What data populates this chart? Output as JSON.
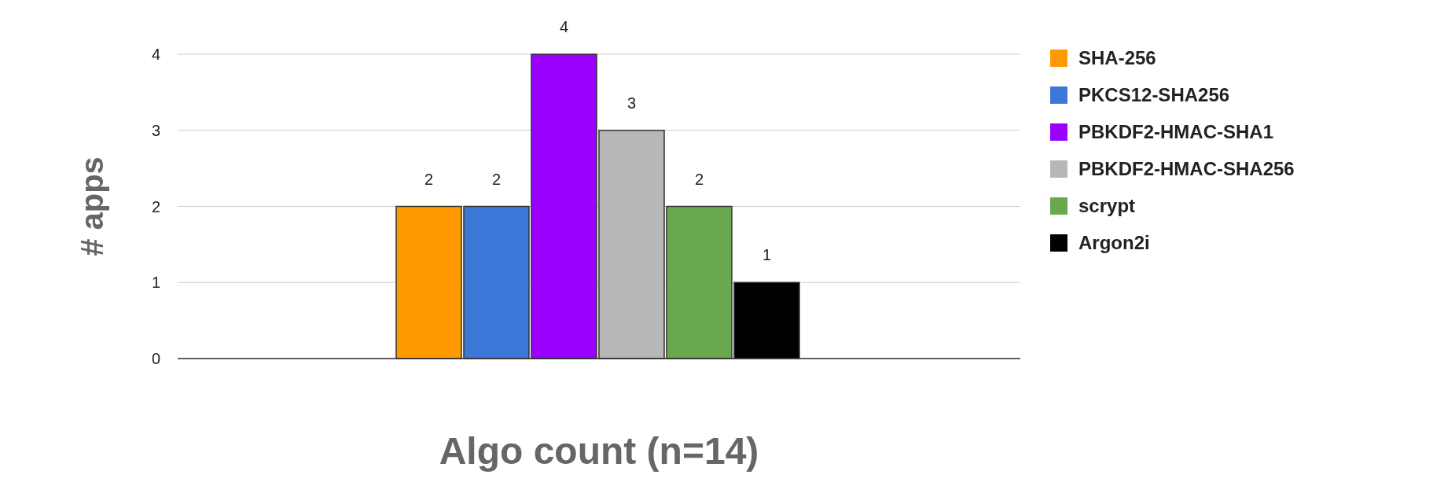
{
  "chart_data": {
    "type": "bar",
    "xlabel": "Algo count (n=14)",
    "ylabel": "# apps",
    "categories": [
      null
    ],
    "series": [
      {
        "name": "SHA-256",
        "color": "#ff9900",
        "values": [
          2
        ]
      },
      {
        "name": "PKCS12-SHA256",
        "color": "#3c78d8",
        "values": [
          2
        ]
      },
      {
        "name": "PBKDF2-HMAC-SHA1",
        "color": "#9900ff",
        "values": [
          4
        ]
      },
      {
        "name": "PBKDF2-HMAC-SHA256",
        "color": "#b7b7b7",
        "values": [
          3
        ]
      },
      {
        "name": "scrypt",
        "color": "#6aa84f",
        "values": [
          2
        ]
      },
      {
        "name": "Argon2i",
        "color": "#000000",
        "values": [
          1
        ]
      }
    ],
    "ylim": [
      0,
      4
    ],
    "yticks": [
      0,
      1,
      2,
      3,
      4
    ],
    "grid": "y",
    "legend": "right",
    "data_labels": true
  }
}
